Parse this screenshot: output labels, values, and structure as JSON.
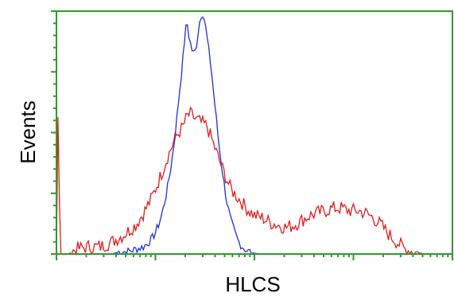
{
  "chart_data": {
    "type": "line",
    "title": "",
    "xlabel": "HLCS",
    "ylabel": "Events",
    "x_scale": "log",
    "xlim": [
      0,
      1
    ],
    "ylim": [
      0,
      1
    ],
    "grid": false,
    "frame_color": "#2e9a2e",
    "series": [
      {
        "color": "#1f2fd6",
        "points": [
          [
            0.0,
            0.0
          ],
          [
            0.05,
            0.0
          ],
          [
            0.1,
            0.0
          ],
          [
            0.14,
            0.0
          ],
          [
            0.16,
            0.01
          ],
          [
            0.18,
            0.01
          ],
          [
            0.2,
            0.02
          ],
          [
            0.22,
            0.03
          ],
          [
            0.24,
            0.06
          ],
          [
            0.25,
            0.09
          ],
          [
            0.26,
            0.13
          ],
          [
            0.27,
            0.19
          ],
          [
            0.28,
            0.27
          ],
          [
            0.29,
            0.37
          ],
          [
            0.3,
            0.5
          ],
          [
            0.31,
            0.66
          ],
          [
            0.32,
            0.82
          ],
          [
            0.325,
            0.92
          ],
          [
            0.33,
            0.96
          ],
          [
            0.335,
            0.9
          ],
          [
            0.34,
            0.86
          ],
          [
            0.345,
            0.83
          ],
          [
            0.35,
            0.84
          ],
          [
            0.355,
            0.88
          ],
          [
            0.36,
            0.95
          ],
          [
            0.365,
            0.99
          ],
          [
            0.37,
            1.0
          ],
          [
            0.375,
            0.96
          ],
          [
            0.38,
            0.9
          ],
          [
            0.39,
            0.78
          ],
          [
            0.4,
            0.62
          ],
          [
            0.41,
            0.46
          ],
          [
            0.42,
            0.33
          ],
          [
            0.43,
            0.22
          ],
          [
            0.44,
            0.14
          ],
          [
            0.45,
            0.09
          ],
          [
            0.46,
            0.05
          ],
          [
            0.47,
            0.03
          ],
          [
            0.48,
            0.015
          ],
          [
            0.49,
            0.008
          ],
          [
            0.5,
            0.003
          ],
          [
            0.52,
            0.0
          ],
          [
            0.6,
            0.0
          ],
          [
            0.8,
            0.0
          ],
          [
            1.0,
            0.0
          ]
        ]
      },
      {
        "color": "#e01c1c",
        "points": [
          [
            0.0,
            0.0
          ],
          [
            0.003,
            0.54
          ],
          [
            0.006,
            0.54
          ],
          [
            0.009,
            0.0
          ],
          [
            0.03,
            0.0
          ],
          [
            0.05,
            0.02
          ],
          [
            0.08,
            0.03
          ],
          [
            0.11,
            0.03
          ],
          [
            0.14,
            0.05
          ],
          [
            0.17,
            0.08
          ],
          [
            0.2,
            0.12
          ],
          [
            0.22,
            0.17
          ],
          [
            0.24,
            0.23
          ],
          [
            0.26,
            0.31
          ],
          [
            0.28,
            0.4
          ],
          [
            0.3,
            0.48
          ],
          [
            0.32,
            0.53
          ],
          [
            0.33,
            0.57
          ],
          [
            0.34,
            0.58
          ],
          [
            0.35,
            0.56
          ],
          [
            0.36,
            0.55
          ],
          [
            0.38,
            0.53
          ],
          [
            0.4,
            0.44
          ],
          [
            0.42,
            0.35
          ],
          [
            0.44,
            0.27
          ],
          [
            0.46,
            0.23
          ],
          [
            0.48,
            0.19
          ],
          [
            0.5,
            0.16
          ],
          [
            0.52,
            0.15
          ],
          [
            0.54,
            0.13
          ],
          [
            0.56,
            0.12
          ],
          [
            0.58,
            0.11
          ],
          [
            0.6,
            0.12
          ],
          [
            0.62,
            0.14
          ],
          [
            0.64,
            0.16
          ],
          [
            0.66,
            0.17
          ],
          [
            0.68,
            0.18
          ],
          [
            0.7,
            0.19
          ],
          [
            0.72,
            0.19
          ],
          [
            0.74,
            0.18
          ],
          [
            0.76,
            0.18
          ],
          [
            0.78,
            0.17
          ],
          [
            0.8,
            0.15
          ],
          [
            0.82,
            0.12
          ],
          [
            0.84,
            0.08
          ],
          [
            0.86,
            0.05
          ],
          [
            0.88,
            0.02
          ],
          [
            0.9,
            0.01
          ],
          [
            0.93,
            0.0
          ],
          [
            1.0,
            0.0
          ]
        ]
      }
    ]
  }
}
